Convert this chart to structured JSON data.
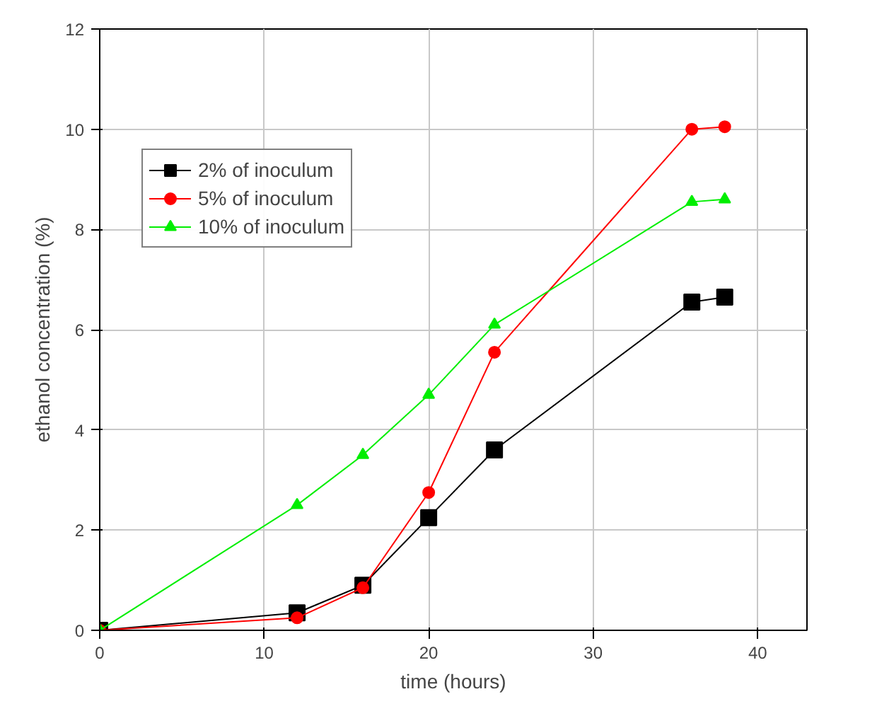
{
  "chart_data": {
    "type": "line",
    "xlabel": "time (hours)",
    "ylabel": "ethanol concentration (%)",
    "xlim": [
      0,
      43
    ],
    "ylim": [
      0,
      12
    ],
    "xticks": [
      0,
      10,
      20,
      30,
      40
    ],
    "yticks": [
      0,
      2,
      4,
      6,
      8,
      10,
      12
    ],
    "grid": true,
    "legend": "top left",
    "series": [
      {
        "name": "2% of inoculum",
        "color": "#000000",
        "marker": "square",
        "x": [
          0,
          12,
          16,
          20,
          24,
          36,
          38
        ],
        "values": [
          0,
          0.35,
          0.9,
          2.25,
          3.6,
          6.55,
          6.65
        ]
      },
      {
        "name": "5% of inoculum",
        "color": "#ff0000",
        "marker": "circle",
        "x": [
          0,
          12,
          16,
          20,
          24,
          36,
          38
        ],
        "values": [
          0,
          0.25,
          0.85,
          2.75,
          5.55,
          10.0,
          10.05
        ]
      },
      {
        "name": "10% of inoculum",
        "color": "#00ee00",
        "marker": "triangle",
        "x": [
          0,
          12,
          16,
          20,
          24,
          36,
          38
        ],
        "values": [
          0,
          2.5,
          3.5,
          4.7,
          6.1,
          8.55,
          8.6
        ]
      }
    ]
  }
}
